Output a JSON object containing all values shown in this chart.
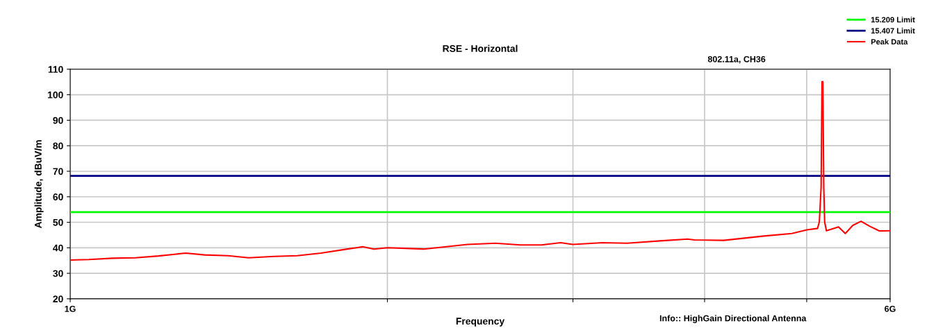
{
  "chart_data": {
    "type": "line",
    "title": "RSE - Horizontal",
    "xlabel": "Frequency",
    "ylabel": "Amplitude, dBuV/m",
    "annotations": [
      "802.11a, CH36",
      "Info:: HighGain Directional Antenna"
    ],
    "log": "x",
    "xlim": [
      1,
      6
    ],
    "xticks": [
      {
        "value": 1,
        "label": "1G"
      },
      {
        "value": 2,
        "label": null
      },
      {
        "value": 3,
        "label": null
      },
      {
        "value": 4,
        "label": null
      },
      {
        "value": 5,
        "label": null
      },
      {
        "value": 6,
        "label": "6G"
      }
    ],
    "ylim": [
      20,
      110
    ],
    "yticks": [
      20,
      30,
      40,
      50,
      60,
      70,
      80,
      90,
      100,
      110
    ],
    "grid": true,
    "legend": "top right",
    "ref_lines": [
      {
        "axis": "y",
        "value": 54,
        "label": "15.209 Limit",
        "color": "#00ff00"
      },
      {
        "axis": "y",
        "value": 68.2,
        "label": "15.407 Limit",
        "color": "#000080"
      }
    ],
    "series": [
      {
        "name": "Peak Data",
        "color": "#ff0000",
        "x": [
          1.0,
          1.042,
          1.097,
          1.153,
          1.213,
          1.287,
          1.342,
          1.412,
          1.477,
          1.562,
          1.642,
          1.73,
          1.819,
          1.895,
          1.942,
          2.0,
          2.165,
          2.383,
          2.533,
          2.675,
          2.8,
          2.92,
          3.0,
          3.2,
          3.377,
          3.628,
          3.855,
          3.912,
          4.17,
          4.554,
          4.84,
          5.0,
          5.12,
          5.14,
          5.16,
          5.17,
          5.18,
          5.19,
          5.2,
          5.22,
          5.36,
          5.44,
          5.53,
          5.63,
          5.74,
          5.86,
          6.0
        ],
        "values": [
          35.2,
          35.4,
          35.9,
          36.1,
          36.8,
          37.9,
          37.2,
          36.9,
          36.1,
          36.6,
          36.9,
          37.9,
          39.3,
          40.4,
          39.5,
          40.0,
          39.5,
          41.3,
          41.8,
          41.1,
          41.1,
          42.0,
          41.3,
          42.0,
          41.8,
          42.7,
          43.4,
          43.1,
          42.9,
          44.6,
          45.6,
          47.0,
          47.6,
          50.2,
          63.8,
          105.1,
          105.1,
          63.8,
          50.2,
          46.7,
          48.2,
          45.6,
          48.8,
          50.4,
          48.4,
          46.6,
          46.7
        ]
      }
    ]
  }
}
